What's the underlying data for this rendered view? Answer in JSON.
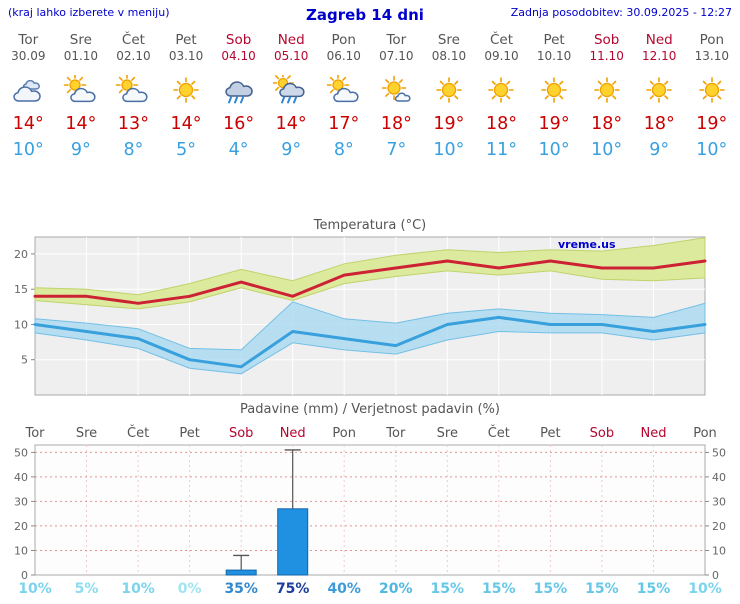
{
  "header": {
    "note": "(kraj lahko izberete v meniju)",
    "title": "Zagreb 14 dni",
    "updated": "Zadnja posodobitev: 30.09.2025 - 12:27"
  },
  "watermark": "vreme.us",
  "colors": {
    "header_text": "#0000cc",
    "day_text": "#555555",
    "weekend_text": "#b5062f",
    "tmax_text": "#cc0000",
    "tmin_text": "#38a0e0"
  },
  "forecast": {
    "days": [
      {
        "name": "Tor",
        "date": "30.09",
        "weekend": false,
        "icon": "cloudy",
        "tmax": "14°",
        "tmin": "10°"
      },
      {
        "name": "Sre",
        "date": "01.10",
        "weekend": false,
        "icon": "partly-cloudy",
        "tmax": "14°",
        "tmin": "9°"
      },
      {
        "name": "Čet",
        "date": "02.10",
        "weekend": false,
        "icon": "partly-cloudy",
        "tmax": "13°",
        "tmin": "8°"
      },
      {
        "name": "Pet",
        "date": "03.10",
        "weekend": false,
        "icon": "sunny",
        "tmax": "14°",
        "tmin": "5°"
      },
      {
        "name": "Sob",
        "date": "04.10",
        "weekend": true,
        "icon": "rain",
        "tmax": "16°",
        "tmin": "4°"
      },
      {
        "name": "Ned",
        "date": "05.10",
        "weekend": true,
        "icon": "rain-sun",
        "tmax": "14°",
        "tmin": "9°"
      },
      {
        "name": "Pon",
        "date": "06.10",
        "weekend": false,
        "icon": "partly-cloudy",
        "tmax": "17°",
        "tmin": "8°"
      },
      {
        "name": "Tor",
        "date": "07.10",
        "weekend": false,
        "icon": "mostly-sunny",
        "tmax": "18°",
        "tmin": "7°"
      },
      {
        "name": "Sre",
        "date": "08.10",
        "weekend": false,
        "icon": "sunny",
        "tmax": "19°",
        "tmin": "10°"
      },
      {
        "name": "Čet",
        "date": "09.10",
        "weekend": false,
        "icon": "sunny",
        "tmax": "18°",
        "tmin": "11°"
      },
      {
        "name": "Pet",
        "date": "10.10",
        "weekend": false,
        "icon": "sunny",
        "tmax": "19°",
        "tmin": "10°"
      },
      {
        "name": "Sob",
        "date": "11.10",
        "weekend": true,
        "icon": "sunny",
        "tmax": "18°",
        "tmin": "10°"
      },
      {
        "name": "Ned",
        "date": "12.10",
        "weekend": true,
        "icon": "sunny",
        "tmax": "18°",
        "tmin": "9°"
      },
      {
        "name": "Pon",
        "date": "13.10",
        "weekend": false,
        "icon": "sunny",
        "tmax": "19°",
        "tmin": "10°"
      }
    ]
  },
  "chart_data": [
    {
      "type": "line",
      "title": "Temperatura (°C)",
      "categories": [
        "Tor 30.09",
        "Sre 01.10",
        "Čet 02.10",
        "Pet 03.10",
        "Sob 04.10",
        "Ned 05.10",
        "Pon 06.10",
        "Tor 07.10",
        "Sre 08.10",
        "Čet 09.10",
        "Pet 10.10",
        "Sob 11.10",
        "Ned 12.10",
        "Pon 13.10"
      ],
      "ylim": [
        0,
        22.4
      ],
      "yticks": [
        5,
        10,
        15,
        20
      ],
      "grid": true,
      "plot_bg": "#efefef",
      "series": [
        {
          "name": "max-temp",
          "color": "#cc2233",
          "values": [
            14,
            14,
            13,
            14,
            16,
            14,
            17,
            18,
            19,
            18,
            19,
            18,
            18,
            19
          ]
        },
        {
          "name": "min-temp",
          "color": "#38a0dc",
          "values": [
            10,
            9,
            8,
            5,
            4,
            9,
            8,
            7,
            10,
            11,
            10,
            10,
            9,
            10
          ]
        }
      ],
      "bands": [
        {
          "name": "max-temp-range",
          "fill": "#dcea9e",
          "stroke": "#bfd36a",
          "opacity": 1,
          "hi": [
            15.2,
            15,
            14.2,
            15.8,
            17.8,
            16.2,
            18.6,
            19.8,
            20.6,
            20.2,
            20.6,
            20.4,
            21.2,
            22.3
          ],
          "lo": [
            13.4,
            12.8,
            12.2,
            13.2,
            15.2,
            13.4,
            15.8,
            16.8,
            17.6,
            17,
            17.6,
            16.4,
            16.2,
            16.6
          ]
        },
        {
          "name": "min-temp-range",
          "fill": "#a9d9f0",
          "stroke": "#74bfe6",
          "opacity": 0.8,
          "hi": [
            10.8,
            10.2,
            9.4,
            6.6,
            6.4,
            13.2,
            10.8,
            10.2,
            11.6,
            12.2,
            11.6,
            11.4,
            11,
            13
          ],
          "lo": [
            8.8,
            7.8,
            6.6,
            3.8,
            3,
            7.4,
            6.4,
            5.8,
            7.8,
            9,
            8.8,
            8.8,
            7.8,
            8.8
          ]
        }
      ]
    },
    {
      "type": "bar",
      "title": "Padavine (mm) / Verjetnost padavin (%)",
      "categories": [
        "Tor",
        "Sre",
        "Čet",
        "Pet",
        "Sob",
        "Ned",
        "Pon",
        "Tor",
        "Sre",
        "Čet",
        "Pet",
        "Sob",
        "Ned",
        "Pon"
      ],
      "weekend_indices": [
        4,
        5,
        11,
        12
      ],
      "ylim": [
        0,
        53
      ],
      "yticks": [
        0,
        10,
        20,
        30,
        40,
        50
      ],
      "values": [
        0,
        0,
        0,
        0,
        2,
        27,
        0,
        0,
        0,
        0,
        0,
        0,
        0,
        0
      ],
      "whisker_max": [
        0,
        0,
        0,
        0,
        8,
        51,
        0,
        0,
        0,
        0,
        0,
        0,
        0,
        0
      ],
      "bar_color": "#2090e0",
      "probability": [
        {
          "label": "10%",
          "color": "#7cd4ec"
        },
        {
          "label": "5%",
          "color": "#8cdcee"
        },
        {
          "label": "10%",
          "color": "#7cd4ec"
        },
        {
          "label": "0%",
          "color": "#a0e4f2"
        },
        {
          "label": "35%",
          "color": "#3488cc"
        },
        {
          "label": "75%",
          "color": "#1c3e9c"
        },
        {
          "label": "40%",
          "color": "#3e9ad8"
        },
        {
          "label": "20%",
          "color": "#50b8e0"
        },
        {
          "label": "15%",
          "color": "#66c8e6"
        },
        {
          "label": "15%",
          "color": "#66c8e6"
        },
        {
          "label": "15%",
          "color": "#66c8e6"
        },
        {
          "label": "15%",
          "color": "#66c8e6"
        },
        {
          "label": "15%",
          "color": "#66c8e6"
        },
        {
          "label": "10%",
          "color": "#7cd4ec"
        }
      ]
    }
  ]
}
